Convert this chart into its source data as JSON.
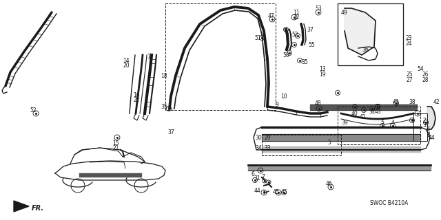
{
  "bg_color": "#ffffff",
  "line_color": "#1a1a1a",
  "text_color": "#1a1a1a",
  "diagram_label": "SWOC B4210A"
}
